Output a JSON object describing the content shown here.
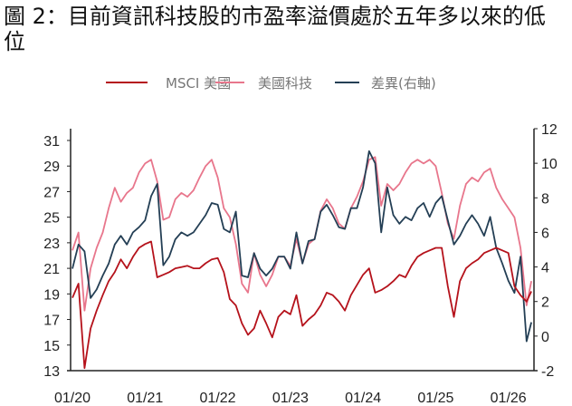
{
  "title": "圖 2：目前資訊科技股的市盈率溢價處於五年多以來的低位",
  "chart_data": {
    "type": "line",
    "title": "圖 2：目前資訊科技股的市盈率溢價處於五年多以來的低位",
    "xlabel": "",
    "ylabel": "",
    "x_unit": "months since 01/2020",
    "x": [
      0,
      1,
      2,
      3,
      4,
      5,
      6,
      7,
      8,
      9,
      10,
      11,
      12,
      13,
      14,
      15,
      16,
      17,
      18,
      19,
      20,
      21,
      22,
      23,
      24,
      25,
      26,
      27,
      28,
      29,
      30,
      31,
      32,
      33,
      34,
      35,
      36,
      37,
      38,
      39,
      40,
      41,
      42,
      43,
      44,
      45,
      46,
      47,
      48,
      49,
      50,
      51,
      52,
      53,
      54,
      55,
      56,
      57,
      58,
      59,
      60,
      61,
      62,
      63,
      64,
      65,
      66,
      67,
      68,
      69,
      70,
      71,
      72,
      73,
      74,
      75,
      75.8
    ],
    "xticks": [
      "01/20",
      "01/21",
      "01/22",
      "01/23",
      "01/24",
      "01/25",
      "01/26"
    ],
    "xtick_positions": [
      0,
      12,
      24,
      36,
      48,
      60,
      72
    ],
    "y_left": {
      "ticks": [
        "13",
        "15",
        "17",
        "19",
        "21",
        "23",
        "25",
        "27",
        "29",
        "31"
      ],
      "ylim": [
        13,
        32
      ]
    },
    "y_right": {
      "ticks": [
        "-2",
        "0",
        "2",
        "4",
        "6",
        "8",
        "10",
        "12"
      ],
      "ylim": [
        -2,
        12
      ]
    },
    "legend_position": "top",
    "grid": false,
    "series": [
      {
        "name": "MSCI 美國",
        "axis": "left",
        "color": "#b5121b",
        "values": [
          18.7,
          19.8,
          13.2,
          16.3,
          17.7,
          18.9,
          20.0,
          20.7,
          21.7,
          21.0,
          21.9,
          22.6,
          22.9,
          23.1,
          20.3,
          20.5,
          20.7,
          21.0,
          21.1,
          21.2,
          21.0,
          21.0,
          21.4,
          21.7,
          21.8,
          20.7,
          18.6,
          18.1,
          16.7,
          15.8,
          16.3,
          17.7,
          16.7,
          15.6,
          17.2,
          17.7,
          17.4,
          18.9,
          16.5,
          17.0,
          17.4,
          18.1,
          19.1,
          18.9,
          18.4,
          17.7,
          18.9,
          19.7,
          20.5,
          21.0,
          19.1,
          19.3,
          19.6,
          20.0,
          20.5,
          20.3,
          21.2,
          21.9,
          22.2,
          22.4,
          22.6,
          22.6,
          19.6,
          17.2,
          20.0,
          21.0,
          21.4,
          21.7,
          22.2,
          22.4,
          22.6,
          22.4,
          22.2,
          19.6,
          18.9,
          18.4,
          19.2
        ]
      },
      {
        "name": "美國科技",
        "axis": "left",
        "color": "#e8768c",
        "values": [
          22.4,
          23.8,
          17.7,
          21.0,
          22.6,
          23.8,
          25.7,
          27.3,
          26.2,
          26.9,
          27.3,
          28.5,
          29.2,
          29.5,
          27.8,
          24.8,
          25.0,
          26.4,
          26.9,
          26.6,
          27.1,
          28.1,
          29.0,
          29.5,
          28.1,
          25.7,
          25.0,
          22.9,
          19.8,
          19.1,
          22.2,
          20.5,
          19.6,
          20.5,
          21.9,
          21.9,
          21.2,
          23.3,
          21.4,
          22.9,
          23.3,
          25.5,
          26.4,
          25.7,
          24.5,
          24.1,
          25.7,
          26.6,
          27.8,
          29.5,
          29.7,
          25.9,
          27.6,
          27.1,
          27.6,
          28.5,
          29.2,
          29.5,
          29.2,
          29.5,
          29.0,
          26.9,
          24.5,
          23.3,
          25.9,
          27.6,
          28.1,
          27.8,
          28.5,
          28.8,
          27.3,
          26.4,
          25.7,
          25.0,
          22.6,
          18.1,
          20.0
        ]
      },
      {
        "name": "差異(右軸)",
        "axis": "right",
        "color": "#243f55",
        "values": [
          3.9,
          5.3,
          4.9,
          2.2,
          2.7,
          3.5,
          4.2,
          5.3,
          5.8,
          5.3,
          6.0,
          6.3,
          6.7,
          8.1,
          8.8,
          4.1,
          4.6,
          5.6,
          6.0,
          5.8,
          6.0,
          6.5,
          7.0,
          7.7,
          7.6,
          6.2,
          6.0,
          7.2,
          3.5,
          3.4,
          4.8,
          3.9,
          3.5,
          3.9,
          4.6,
          4.6,
          3.9,
          6.0,
          4.2,
          5.5,
          5.6,
          7.2,
          7.6,
          7.0,
          6.3,
          6.2,
          7.4,
          7.4,
          8.6,
          10.7,
          10.0,
          6.0,
          8.6,
          7.0,
          6.5,
          6.9,
          6.7,
          7.4,
          7.7,
          6.9,
          7.7,
          8.1,
          6.7,
          5.3,
          5.8,
          6.5,
          7.0,
          6.5,
          5.8,
          6.9,
          5.1,
          4.2,
          3.2,
          2.5,
          4.6,
          -0.3,
          0.8
        ]
      }
    ]
  }
}
